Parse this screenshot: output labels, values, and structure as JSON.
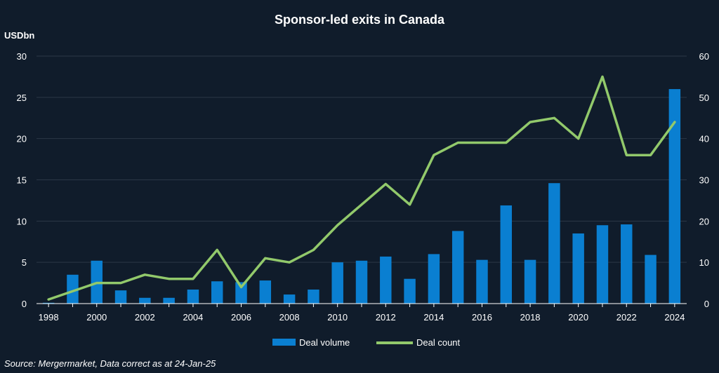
{
  "chart_data": {
    "type": "bar",
    "title": "Sponsor-led exits in Canada",
    "ylabel": "USDbn",
    "xlabel": "",
    "ylim": [
      0,
      30
    ],
    "y2lim": [
      0,
      60
    ],
    "yticks": [
      "0",
      "5",
      "10",
      "15",
      "20",
      "25",
      "30"
    ],
    "y2ticks": [
      "0",
      "10",
      "20",
      "30",
      "40",
      "50",
      "60"
    ],
    "xtick_labels": [
      "1998",
      "2000",
      "2002",
      "2004",
      "2006",
      "2008",
      "2010",
      "2012",
      "2014",
      "2016",
      "2018",
      "2020",
      "2022",
      "2024"
    ],
    "categories": [
      "1998",
      "1999",
      "2000",
      "2001",
      "2002",
      "2003",
      "2004",
      "2005",
      "2006",
      "2007",
      "2008",
      "2009",
      "2010",
      "2011",
      "2012",
      "2013",
      "2014",
      "2015",
      "2016",
      "2017",
      "2018",
      "2019",
      "2020",
      "2021",
      "2022",
      "2023",
      "2024"
    ],
    "grid": true,
    "legend_position": "bottom",
    "series": [
      {
        "name": "Deal volume",
        "type": "bar",
        "axis": "left",
        "color": "#0a7fd1",
        "values": [
          0.1,
          3.5,
          5.2,
          1.6,
          0.7,
          0.7,
          1.7,
          2.7,
          2.6,
          2.8,
          1.1,
          1.7,
          5.0,
          5.2,
          5.7,
          3.0,
          6.0,
          8.8,
          5.3,
          11.9,
          5.3,
          14.6,
          8.5,
          9.5,
          9.6,
          5.9,
          26.0
        ]
      },
      {
        "name": "Deal count",
        "type": "line",
        "axis": "right",
        "color": "#92c96b",
        "values": [
          1,
          3,
          5,
          5,
          7,
          6,
          6,
          13,
          4,
          11,
          10,
          13,
          19,
          24,
          29,
          24,
          36,
          39,
          39,
          39,
          44,
          45,
          40,
          55,
          36,
          36,
          44
        ]
      }
    ]
  },
  "footer": {
    "source": "Source: Mergermarket, Data correct as at 24-Jan-25"
  },
  "colors": {
    "background": "#101c2b",
    "gridline": "#2b3747",
    "axis": "#ffffff"
  }
}
